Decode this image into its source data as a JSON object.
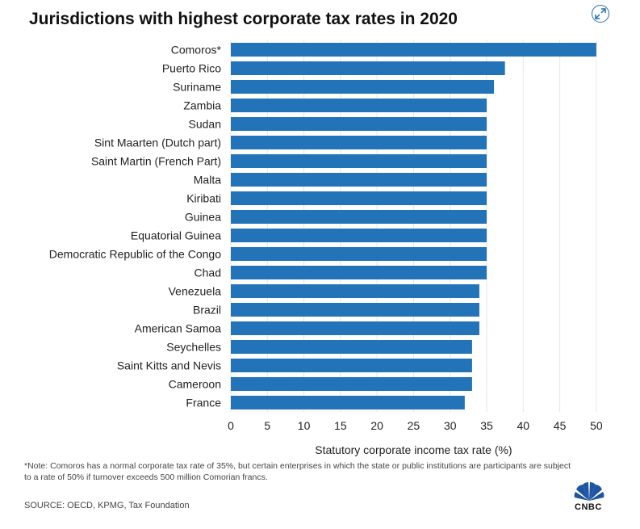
{
  "header": {
    "title": "Jurisdictions with highest corporate tax rates in 2020"
  },
  "chart_data": {
    "type": "bar",
    "orientation": "horizontal",
    "categories": [
      "Comoros*",
      "Puerto Rico",
      "Suriname",
      "Zambia",
      "Sudan",
      "Sint Maarten (Dutch part)",
      "Saint Martin (French Part)",
      "Malta",
      "Kiribati",
      "Guinea",
      "Equatorial Guinea",
      "Democratic Republic of the Congo",
      "Chad",
      "Venezuela",
      "Brazil",
      "American Samoa",
      "Seychelles",
      "Saint Kitts and Nevis",
      "Cameroon",
      "France"
    ],
    "values": [
      50,
      37.5,
      36,
      35,
      35,
      35,
      35,
      35,
      35,
      35,
      35,
      35,
      35,
      34,
      34,
      34,
      33,
      33,
      33,
      32
    ],
    "title": "Jurisdictions with highest corporate tax rates in 2020",
    "xlabel": "Statutory corporate income tax rate (%)",
    "ylabel": "",
    "xlim": [
      0,
      52
    ],
    "xticks": [
      "0",
      "5",
      "10",
      "15",
      "20",
      "25",
      "30",
      "35",
      "40",
      "45",
      "50"
    ],
    "grid": "vertical",
    "bar_color": "#2273b8"
  },
  "footer": {
    "note": "*Note: Comoros has a normal corporate tax rate of 35%, but certain enterprises in which the state or public institutions are participants are subject to a rate of 50% if turnover exceeds 500 million Comorian francs.",
    "source": "SOURCE: OECD, KPMG, Tax Foundation",
    "logo_text": "CNBC"
  },
  "colors": {
    "accent": "#1f6fb5",
    "grid": "#e6e6e6"
  },
  "icons": {
    "expand": "expand-arrows-icon",
    "logo": "peacock-logo-icon"
  }
}
